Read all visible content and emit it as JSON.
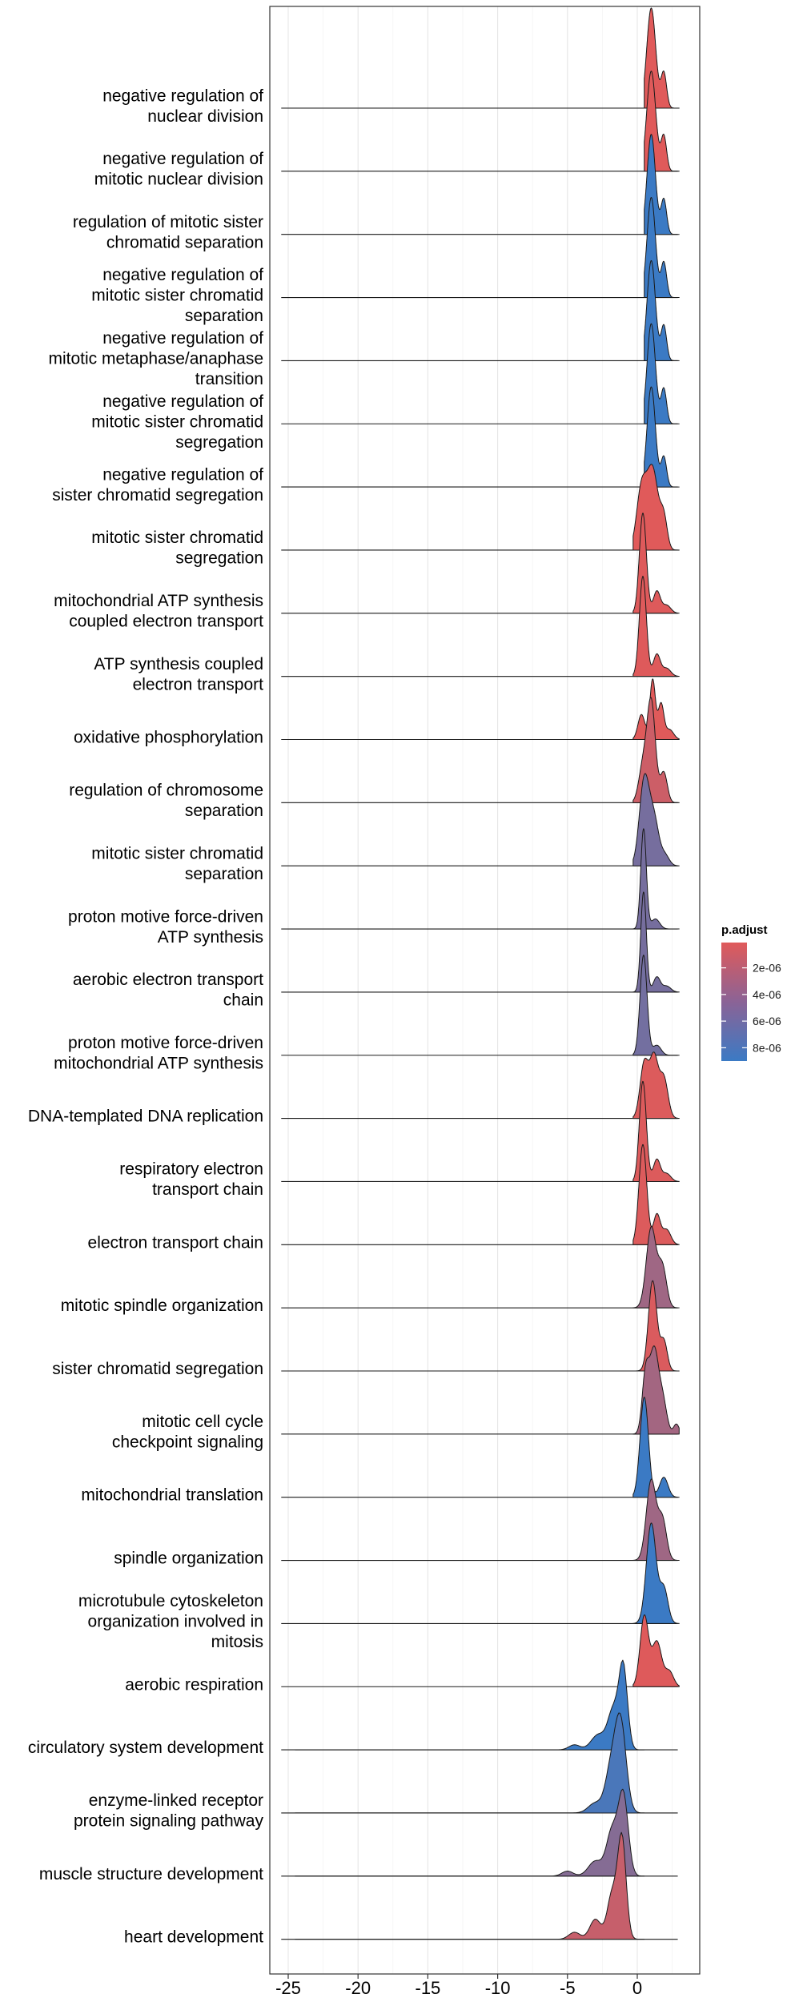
{
  "chart_data": {
    "type": "ridgeline",
    "xlim": [
      -25,
      4
    ],
    "x_ticks": [
      -25,
      -20,
      -15,
      -10,
      -5,
      0
    ],
    "x_tick_labels": [
      "-25",
      "-20",
      "-15",
      "-10",
      "-5",
      "0"
    ],
    "grid": true,
    "legend": {
      "title": "p.adjust",
      "placement": "right",
      "range": [
        1e-07,
        9e-06
      ],
      "ticks": [
        2e-06,
        4e-06,
        6e-06,
        8e-06
      ],
      "tick_labels": [
        "2e-06",
        "4e-06",
        "6e-06",
        "8e-06"
      ],
      "low_color": "#E05A5A",
      "high_color": "#3B7AC4"
    },
    "series": [
      {
        "lines": [
          "negative regulation of",
          "nuclear division"
        ],
        "padj": 1e-07,
        "peaks": [
          [
            1.0,
            0.32,
            1.0
          ],
          [
            1.9,
            0.2,
            0.35
          ]
        ],
        "range": [
          0.5,
          3.0
        ]
      },
      {
        "lines": [
          "negative regulation of",
          "mitotic nuclear division"
        ],
        "padj": 1e-07,
        "peaks": [
          [
            1.0,
            0.32,
            1.0
          ],
          [
            1.9,
            0.2,
            0.35
          ]
        ],
        "range": [
          0.5,
          3.0
        ]
      },
      {
        "lines": [
          "regulation of mitotic sister",
          "chromatid separation"
        ],
        "padj": 9e-06,
        "peaks": [
          [
            1.0,
            0.3,
            1.0
          ],
          [
            1.9,
            0.2,
            0.35
          ]
        ],
        "range": [
          0.5,
          3.0
        ]
      },
      {
        "lines": [
          "negative regulation of",
          "mitotic sister chromatid",
          "separation"
        ],
        "padj": 9e-06,
        "peaks": [
          [
            1.0,
            0.3,
            1.0
          ],
          [
            1.9,
            0.2,
            0.35
          ]
        ],
        "range": [
          0.5,
          3.0
        ]
      },
      {
        "lines": [
          "negative regulation of",
          "mitotic metaphase/anaphase",
          "transition"
        ],
        "padj": 9e-06,
        "peaks": [
          [
            1.0,
            0.3,
            1.0
          ],
          [
            1.9,
            0.2,
            0.35
          ]
        ],
        "range": [
          0.5,
          3.0
        ]
      },
      {
        "lines": [
          "negative regulation of",
          "mitotic sister chromatid",
          "segregation"
        ],
        "padj": 9e-06,
        "peaks": [
          [
            1.0,
            0.3,
            1.0
          ],
          [
            1.9,
            0.2,
            0.35
          ]
        ],
        "range": [
          0.5,
          3.0
        ]
      },
      {
        "lines": [
          "negative regulation of",
          "sister chromatid segregation"
        ],
        "padj": 9e-06,
        "peaks": [
          [
            1.0,
            0.3,
            1.0
          ],
          [
            1.9,
            0.2,
            0.3
          ]
        ],
        "range": [
          0.5,
          3.0
        ]
      },
      {
        "lines": [
          "mitotic sister chromatid",
          "segregation"
        ],
        "padj": 1e-07,
        "peaks": [
          [
            0.3,
            0.35,
            0.6
          ],
          [
            1.1,
            0.4,
            0.8
          ],
          [
            1.9,
            0.25,
            0.3
          ]
        ],
        "range": [
          -0.3,
          3.0
        ]
      },
      {
        "lines": [
          "mitochondrial ATP synthesis",
          "coupled electron transport"
        ],
        "padj": 2e-07,
        "peaks": [
          [
            0.4,
            0.25,
            1.0
          ],
          [
            1.4,
            0.25,
            0.22
          ],
          [
            2.1,
            0.3,
            0.08
          ]
        ],
        "range": [
          -0.3,
          3.0
        ]
      },
      {
        "lines": [
          "ATP synthesis coupled",
          "electron transport"
        ],
        "padj": 2e-07,
        "peaks": [
          [
            0.4,
            0.25,
            1.0
          ],
          [
            1.4,
            0.25,
            0.22
          ],
          [
            2.1,
            0.3,
            0.08
          ]
        ],
        "range": [
          -0.3,
          3.0
        ]
      },
      {
        "lines": [
          "oxidative phosphorylation"
        ],
        "padj": 1e-07,
        "peaks": [
          [
            0.3,
            0.25,
            0.25
          ],
          [
            1.1,
            0.2,
            0.6
          ],
          [
            1.7,
            0.2,
            0.35
          ],
          [
            2.3,
            0.3,
            0.1
          ]
        ],
        "range": [
          -0.3,
          3.0
        ]
      },
      {
        "lines": [
          "regulation of chromosome",
          "separation"
        ],
        "padj": 1.2e-06,
        "peaks": [
          [
            0.4,
            0.3,
            0.35
          ],
          [
            1.0,
            0.3,
            1.0
          ],
          [
            1.9,
            0.25,
            0.3
          ]
        ],
        "range": [
          -0.3,
          3.0
        ]
      },
      {
        "lines": [
          "mitotic sister chromatid",
          "separation"
        ],
        "padj": 5.8e-06,
        "peaks": [
          [
            0.5,
            0.35,
            0.85
          ],
          [
            1.2,
            0.35,
            0.45
          ],
          [
            2.0,
            0.3,
            0.1
          ]
        ],
        "range": [
          -0.3,
          3.0
        ]
      },
      {
        "lines": [
          "proton motive force-driven",
          "ATP synthesis"
        ],
        "padj": 5.8e-06,
        "peaks": [
          [
            0.45,
            0.2,
            1.0
          ],
          [
            1.3,
            0.3,
            0.1
          ]
        ],
        "range": [
          -0.3,
          3.0
        ]
      },
      {
        "lines": [
          "aerobic electron transport",
          "chain"
        ],
        "padj": 5.8e-06,
        "peaks": [
          [
            0.45,
            0.2,
            1.0
          ],
          [
            1.4,
            0.25,
            0.15
          ],
          [
            2.1,
            0.3,
            0.06
          ]
        ],
        "range": [
          -0.3,
          3.0
        ]
      },
      {
        "lines": [
          "proton motive force-driven",
          "mitochondrial ATP synthesis"
        ],
        "padj": 6e-06,
        "peaks": [
          [
            0.45,
            0.25,
            1.0
          ],
          [
            1.4,
            0.3,
            0.1
          ]
        ],
        "range": [
          -0.3,
          3.0
        ]
      },
      {
        "lines": [
          "DNA-templated DNA replication"
        ],
        "padj": 3e-07,
        "peaks": [
          [
            0.5,
            0.3,
            0.55
          ],
          [
            1.2,
            0.3,
            0.6
          ],
          [
            1.9,
            0.3,
            0.4
          ]
        ],
        "range": [
          -0.3,
          3.0
        ]
      },
      {
        "lines": [
          "respiratory electron",
          "transport chain"
        ],
        "padj": 3e-07,
        "peaks": [
          [
            0.4,
            0.25,
            1.0
          ],
          [
            1.4,
            0.25,
            0.22
          ],
          [
            2.1,
            0.3,
            0.08
          ]
        ],
        "range": [
          -0.3,
          3.0
        ]
      },
      {
        "lines": [
          "electron transport chain"
        ],
        "padj": 3e-07,
        "peaks": [
          [
            0.4,
            0.28,
            1.0
          ],
          [
            1.4,
            0.25,
            0.3
          ],
          [
            2.1,
            0.3,
            0.15
          ]
        ],
        "range": [
          -0.3,
          3.0
        ]
      },
      {
        "lines": [
          "mitotic spindle organization"
        ],
        "padj": 3.6e-06,
        "peaks": [
          [
            1.0,
            0.35,
            0.8
          ],
          [
            1.8,
            0.3,
            0.4
          ]
        ],
        "range": [
          -0.3,
          3.0
        ]
      },
      {
        "lines": [
          "sister chromatid segregation"
        ],
        "padj": 4e-07,
        "peaks": [
          [
            1.1,
            0.3,
            0.9
          ],
          [
            1.9,
            0.25,
            0.3
          ]
        ],
        "range": [
          -0.3,
          3.0
        ]
      },
      {
        "lines": [
          "mitotic cell cycle",
          "checkpoint signaling"
        ],
        "padj": 3.4e-06,
        "peaks": [
          [
            0.6,
            0.25,
            0.6
          ],
          [
            1.2,
            0.3,
            0.8
          ],
          [
            1.8,
            0.3,
            0.35
          ],
          [
            2.8,
            0.2,
            0.1
          ]
        ],
        "range": [
          -0.3,
          3.0
        ]
      },
      {
        "lines": [
          "mitochondrial translation"
        ],
        "padj": 9e-06,
        "peaks": [
          [
            0.5,
            0.3,
            1.0
          ],
          [
            1.9,
            0.3,
            0.2
          ]
        ],
        "range": [
          -0.3,
          3.0
        ]
      },
      {
        "lines": [
          "spindle organization"
        ],
        "padj": 3.6e-06,
        "peaks": [
          [
            1.0,
            0.35,
            0.8
          ],
          [
            1.8,
            0.3,
            0.4
          ]
        ],
        "range": [
          -0.3,
          3.0
        ]
      },
      {
        "lines": [
          "microtubule cytoskeleton",
          "organization involved in",
          "mitosis"
        ],
        "padj": 9e-06,
        "peaks": [
          [
            1.0,
            0.35,
            1.0
          ],
          [
            1.9,
            0.3,
            0.35
          ]
        ],
        "range": [
          -0.3,
          3.0
        ]
      },
      {
        "lines": [
          "aerobic respiration"
        ],
        "padj": 2e-07,
        "peaks": [
          [
            0.5,
            0.3,
            0.7
          ],
          [
            1.4,
            0.35,
            0.45
          ],
          [
            2.3,
            0.3,
            0.15
          ]
        ],
        "range": [
          -0.3,
          3.0
        ]
      },
      {
        "lines": [
          "circulatory system development"
        ],
        "padj": 9e-06,
        "peaks": [
          [
            -1.0,
            0.3,
            0.8
          ],
          [
            -1.7,
            0.4,
            0.4
          ],
          [
            -2.8,
            0.5,
            0.15
          ],
          [
            -4.5,
            0.4,
            0.05
          ]
        ],
        "range": [
          -24.5,
          0.5
        ]
      },
      {
        "lines": [
          "enzyme-linked receptor",
          "protein signaling pathway"
        ],
        "padj": 8.2e-06,
        "peaks": [
          [
            -1.2,
            0.4,
            0.9
          ],
          [
            -1.9,
            0.4,
            0.4
          ],
          [
            -3.0,
            0.5,
            0.1
          ]
        ],
        "range": [
          -24.5,
          0.5
        ]
      },
      {
        "lines": [
          "muscle structure development"
        ],
        "padj": 5e-06,
        "peaks": [
          [
            -1.0,
            0.35,
            0.8
          ],
          [
            -1.8,
            0.4,
            0.45
          ],
          [
            -3.0,
            0.5,
            0.15
          ],
          [
            -5.0,
            0.4,
            0.05
          ]
        ],
        "range": [
          -24.5,
          0.5
        ]
      },
      {
        "lines": [
          "heart development"
        ],
        "padj": 1.5e-06,
        "peaks": [
          [
            -1.1,
            0.3,
            1.0
          ],
          [
            -1.8,
            0.35,
            0.45
          ],
          [
            -3.0,
            0.4,
            0.2
          ],
          [
            -4.5,
            0.4,
            0.07
          ]
        ],
        "range": [
          -24.5,
          0.5
        ]
      }
    ]
  }
}
